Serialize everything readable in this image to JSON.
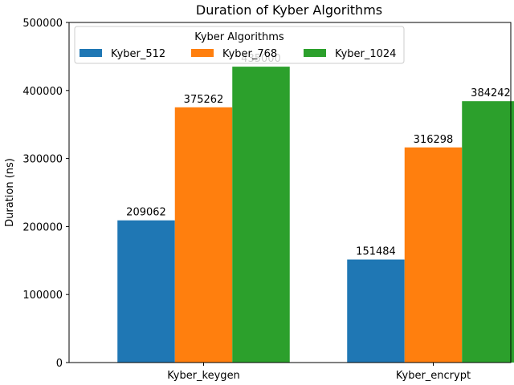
{
  "chart_data": {
    "type": "bar",
    "title": "Duration of Kyber Algorithms",
    "xlabel": "",
    "ylabel": "Duration (ns)",
    "categories": [
      "Kyber_keygen",
      "Kyber_encrypt"
    ],
    "series": [
      {
        "name": "Kyber_512",
        "values": [
          209062,
          151484
        ],
        "color": "#1f77b4"
      },
      {
        "name": "Kyber_768",
        "values": [
          375262,
          316298
        ],
        "color": "#ff7f0e"
      },
      {
        "name": "Kyber_1024",
        "values": [
          435000,
          384242
        ],
        "color": "#2ca02c"
      }
    ],
    "data_labels": [
      [
        "209062",
        "151484"
      ],
      [
        "375262",
        "316298"
      ],
      [
        "435000",
        "384242"
      ]
    ],
    "ylim": [
      0,
      500000
    ],
    "yticks": [
      0,
      100000,
      200000,
      300000,
      400000,
      500000
    ],
    "ytick_labels": [
      "0",
      "100000",
      "200000",
      "300000",
      "400000",
      "500000"
    ],
    "grid": false,
    "legend": {
      "title": "Kyber Algorithms",
      "placement": "upper-center"
    }
  }
}
